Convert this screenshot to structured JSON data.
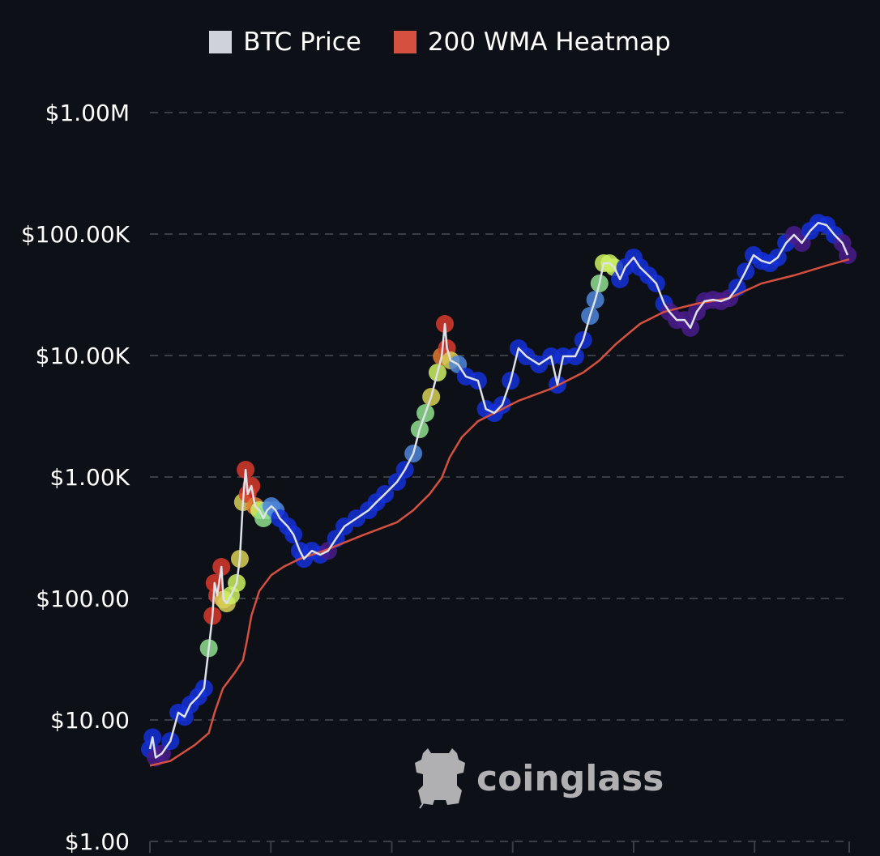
{
  "chart_data": {
    "type": "line",
    "title": "",
    "legend": {
      "position": "top-center",
      "entries": [
        {
          "label": "BTC Price",
          "color": "#cfd2d8"
        },
        {
          "label": "200 WMA Heatmap",
          "color": "#d4503f"
        }
      ]
    },
    "y_scale": "log",
    "ylim": [
      1,
      1000000
    ],
    "y_ticks": [
      {
        "value": 1000000,
        "label": "$1.00M"
      },
      {
        "value": 100000,
        "label": "$100.00K"
      },
      {
        "value": 10000,
        "label": "$10.00K"
      },
      {
        "value": 1000,
        "label": "$1.00K"
      },
      {
        "value": 100,
        "label": "$100.00"
      },
      {
        "value": 10,
        "label": "$10.00"
      },
      {
        "value": 1,
        "label": "$1.00"
      }
    ],
    "xlim": [
      2012.0,
      2025.3
    ],
    "x_ticks": [
      2012,
      2014.3,
      2016.6,
      2018.9,
      2021.2,
      2023.5,
      2025.3
    ],
    "grid": true,
    "heat_colors": {
      "b": "#1530d8",
      "p": "#4a1c8c",
      "r": "#d93a2b",
      "o": "#e07a33",
      "y": "#d9cf55",
      "l": "#cdf062",
      "g": "#8fe08e",
      "c": "#4f86dc"
    },
    "btc_price": [
      [
        2012.0,
        5.75,
        "b"
      ],
      [
        2012.05,
        7.2,
        "b"
      ],
      [
        2012.11,
        4.9,
        "p"
      ],
      [
        2012.23,
        5.3,
        "p"
      ],
      [
        2012.39,
        6.7,
        "b"
      ],
      [
        2012.54,
        11.5,
        "b"
      ],
      [
        2012.66,
        10.6,
        "b"
      ],
      [
        2012.77,
        13.4,
        "b"
      ],
      [
        2012.92,
        15.6,
        "b"
      ],
      [
        2013.03,
        18.2,
        "b"
      ],
      [
        2013.12,
        39,
        "g"
      ],
      [
        2013.19,
        72,
        "r"
      ],
      [
        2013.23,
        134,
        "r"
      ],
      [
        2013.28,
        106,
        "r"
      ],
      [
        2013.36,
        182,
        "r"
      ],
      [
        2013.4,
        98,
        "y"
      ],
      [
        2013.46,
        91,
        "y"
      ],
      [
        2013.54,
        106,
        "l"
      ],
      [
        2013.65,
        134,
        "l"
      ],
      [
        2013.71,
        212,
        "y"
      ],
      [
        2013.77,
        621,
        "y"
      ],
      [
        2013.82,
        1148,
        "r"
      ],
      [
        2013.86,
        724,
        "r"
      ],
      [
        2013.93,
        845,
        "r"
      ],
      [
        2014.0,
        575,
        "o"
      ],
      [
        2014.08,
        533,
        "l"
      ],
      [
        2014.16,
        457,
        "g"
      ],
      [
        2014.23,
        533,
        "g"
      ],
      [
        2014.31,
        575,
        "c"
      ],
      [
        2014.39,
        533,
        "c"
      ],
      [
        2014.47,
        457,
        "b"
      ],
      [
        2014.62,
        392,
        "b"
      ],
      [
        2014.73,
        336,
        "b"
      ],
      [
        2014.85,
        247,
        "b"
      ],
      [
        2014.93,
        212,
        "b"
      ],
      [
        2015.08,
        247,
        "b"
      ],
      [
        2015.24,
        229,
        "b"
      ],
      [
        2015.39,
        247,
        "p"
      ],
      [
        2015.54,
        311,
        "b"
      ],
      [
        2015.7,
        392,
        "b"
      ],
      [
        2015.93,
        457,
        "b"
      ],
      [
        2016.16,
        533,
        "b"
      ],
      [
        2016.31,
        621,
        "b"
      ],
      [
        2016.47,
        724,
        "b"
      ],
      [
        2016.7,
        912,
        "b"
      ],
      [
        2016.85,
        1148,
        "b"
      ],
      [
        2017.01,
        1560,
        "c"
      ],
      [
        2017.13,
        2470,
        "g"
      ],
      [
        2017.24,
        3360,
        "g"
      ],
      [
        2017.35,
        4570,
        "y"
      ],
      [
        2017.47,
        7240,
        "l"
      ],
      [
        2017.55,
        9840,
        "o"
      ],
      [
        2017.61,
        18200,
        "r"
      ],
      [
        2017.65,
        11480,
        "r"
      ],
      [
        2017.72,
        9120,
        "y"
      ],
      [
        2017.86,
        8450,
        "c"
      ],
      [
        2018.01,
        6710,
        "b"
      ],
      [
        2018.24,
        6210,
        "b"
      ],
      [
        2018.39,
        3630,
        "b"
      ],
      [
        2018.55,
        3360,
        "b"
      ],
      [
        2018.7,
        3920,
        "b"
      ],
      [
        2018.86,
        6210,
        "b"
      ],
      [
        2019.01,
        11480,
        "b"
      ],
      [
        2019.16,
        9840,
        "b"
      ],
      [
        2019.4,
        8450,
        "b"
      ],
      [
        2019.63,
        9840,
        "b"
      ],
      [
        2019.75,
        5750,
        "b"
      ],
      [
        2019.86,
        9840,
        "b"
      ],
      [
        2020.09,
        9840,
        "b"
      ],
      [
        2020.24,
        13400,
        "b"
      ],
      [
        2020.37,
        21200,
        "c"
      ],
      [
        2020.47,
        28800,
        "c"
      ],
      [
        2020.55,
        39200,
        "g"
      ],
      [
        2020.63,
        57500,
        "l"
      ],
      [
        2020.74,
        57500,
        "l"
      ],
      [
        2020.83,
        53300,
        "l"
      ],
      [
        2020.94,
        42400,
        "b"
      ],
      [
        2021.04,
        53300,
        "b"
      ],
      [
        2021.2,
        64100,
        "b"
      ],
      [
        2021.32,
        53300,
        "b"
      ],
      [
        2021.48,
        45700,
        "b"
      ],
      [
        2021.63,
        39200,
        "b"
      ],
      [
        2021.78,
        26700,
        "b"
      ],
      [
        2021.88,
        22900,
        "p"
      ],
      [
        2022.02,
        19600,
        "p"
      ],
      [
        2022.17,
        19600,
        "p"
      ],
      [
        2022.28,
        16900,
        "p"
      ],
      [
        2022.4,
        22900,
        "p"
      ],
      [
        2022.55,
        28000,
        "p"
      ],
      [
        2022.71,
        28800,
        "p"
      ],
      [
        2022.86,
        28000,
        "p"
      ],
      [
        2023.02,
        29700,
        "p"
      ],
      [
        2023.17,
        36300,
        "b"
      ],
      [
        2023.33,
        49300,
        "b"
      ],
      [
        2023.48,
        67100,
        "b"
      ],
      [
        2023.63,
        60300,
        "b"
      ],
      [
        2023.79,
        57500,
        "b"
      ],
      [
        2023.94,
        64100,
        "b"
      ],
      [
        2024.1,
        84500,
        "b"
      ],
      [
        2024.25,
        98400,
        "p"
      ],
      [
        2024.4,
        84500,
        "p"
      ],
      [
        2024.56,
        106400,
        "b"
      ],
      [
        2024.71,
        123800,
        "b"
      ],
      [
        2024.87,
        118400,
        "b"
      ],
      [
        2025.02,
        98400,
        "b"
      ],
      [
        2025.17,
        84500,
        "p"
      ],
      [
        2025.27,
        67100,
        "p"
      ]
    ],
    "wma_200": [
      [
        2012.0,
        4.2
      ],
      [
        2012.39,
        4.6
      ],
      [
        2012.85,
        6.2
      ],
      [
        2013.12,
        7.8
      ],
      [
        2013.23,
        11.5
      ],
      [
        2013.39,
        18.2
      ],
      [
        2013.62,
        24.7
      ],
      [
        2013.77,
        31
      ],
      [
        2013.85,
        46
      ],
      [
        2013.93,
        72
      ],
      [
        2014.08,
        115
      ],
      [
        2014.31,
        156
      ],
      [
        2014.54,
        182
      ],
      [
        2014.85,
        212
      ],
      [
        2015.31,
        247
      ],
      [
        2016.08,
        336
      ],
      [
        2016.7,
        424
      ],
      [
        2017.01,
        533
      ],
      [
        2017.32,
        724
      ],
      [
        2017.55,
        984
      ],
      [
        2017.7,
        1445
      ],
      [
        2017.93,
        2120
      ],
      [
        2018.24,
        2880
      ],
      [
        2018.55,
        3360
      ],
      [
        2019.01,
        4240
      ],
      [
        2019.63,
        5330
      ],
      [
        2020.24,
        7240
      ],
      [
        2020.55,
        9120
      ],
      [
        2020.86,
        12400
      ],
      [
        2021.32,
        18200
      ],
      [
        2021.78,
        22900
      ],
      [
        2022.4,
        26700
      ],
      [
        2023.02,
        29700
      ],
      [
        2023.63,
        39200
      ],
      [
        2024.25,
        45700
      ],
      [
        2024.87,
        55000
      ],
      [
        2025.3,
        62100
      ]
    ]
  },
  "watermark": "coinglass"
}
